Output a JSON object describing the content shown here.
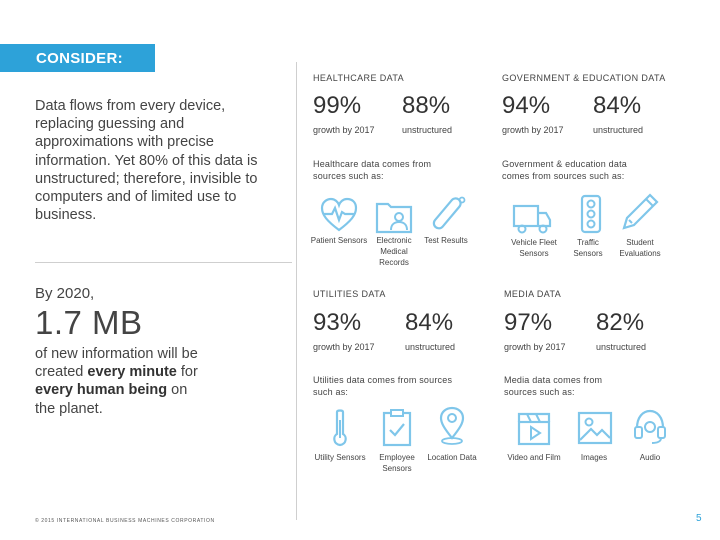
{
  "banner": "CONSIDER:",
  "intro": "Data flows from every device, replacing guessing and approximations with precise information. Yet 80% of this data is unstructured; therefore, invisible to computers and of limited use to business.",
  "stat": {
    "by": "By 2020,",
    "value": "1.7 MB",
    "d1": "of new information will be created ",
    "d2": "every minute",
    "d3": " for ",
    "d4": "every human being",
    "d5": " on the planet."
  },
  "footer": {
    "copyright": "© 2015 INTERNATIONAL BUSINESS MACHINES CORPORATION",
    "page": "5"
  },
  "sections": {
    "healthcare": {
      "title": "HEALTHCARE DATA",
      "growth": "99%",
      "growth_label": "growth by 2017",
      "unstructured": "88%",
      "unstructured_label": "unstructured",
      "sources": "Healthcare data comes from sources such as:",
      "icons": [
        {
          "label": "Patient Sensors",
          "icon": "heart-monitor-icon"
        },
        {
          "label": "Electronic Medical Records",
          "icon": "medical-folder-icon"
        },
        {
          "label": "Test Results",
          "icon": "test-tube-icon"
        }
      ]
    },
    "government": {
      "title": "GOVERNMENT & EDUCATION DATA",
      "growth": "94%",
      "growth_label": "growth by 2017",
      "unstructured": "84%",
      "unstructured_label": "unstructured",
      "sources": "Government & education data comes from sources such as:",
      "icons": [
        {
          "label": "Vehicle Fleet Sensors",
          "icon": "truck-icon"
        },
        {
          "label": "Traffic Sensors",
          "icon": "traffic-light-icon"
        },
        {
          "label": "Student Evaluations",
          "icon": "pencil-icon"
        }
      ]
    },
    "utilities": {
      "title": "UTILITIES DATA",
      "growth": "93%",
      "growth_label": "growth by 2017",
      "unstructured": "84%",
      "unstructured_label": "unstructured",
      "sources": "Utilities data comes from sources such as:",
      "icons": [
        {
          "label": "Utility Sensors",
          "icon": "thermometer-icon"
        },
        {
          "label": "Employee Sensors",
          "icon": "clipboard-icon"
        },
        {
          "label": "Location Data",
          "icon": "map-pin-icon"
        }
      ]
    },
    "media": {
      "title": "MEDIA DATA",
      "growth": "97%",
      "growth_label": "growth by 2017",
      "unstructured": "82%",
      "unstructured_label": "unstructured",
      "sources": "Media data comes from sources such as:",
      "icons": [
        {
          "label": "Video and Film",
          "icon": "clapperboard-icon"
        },
        {
          "label": "Images",
          "icon": "image-icon"
        },
        {
          "label": "Audio",
          "icon": "headset-icon"
        }
      ]
    }
  },
  "colors": {
    "accent": "#2da2d9",
    "icon": "#7fc6ea"
  }
}
